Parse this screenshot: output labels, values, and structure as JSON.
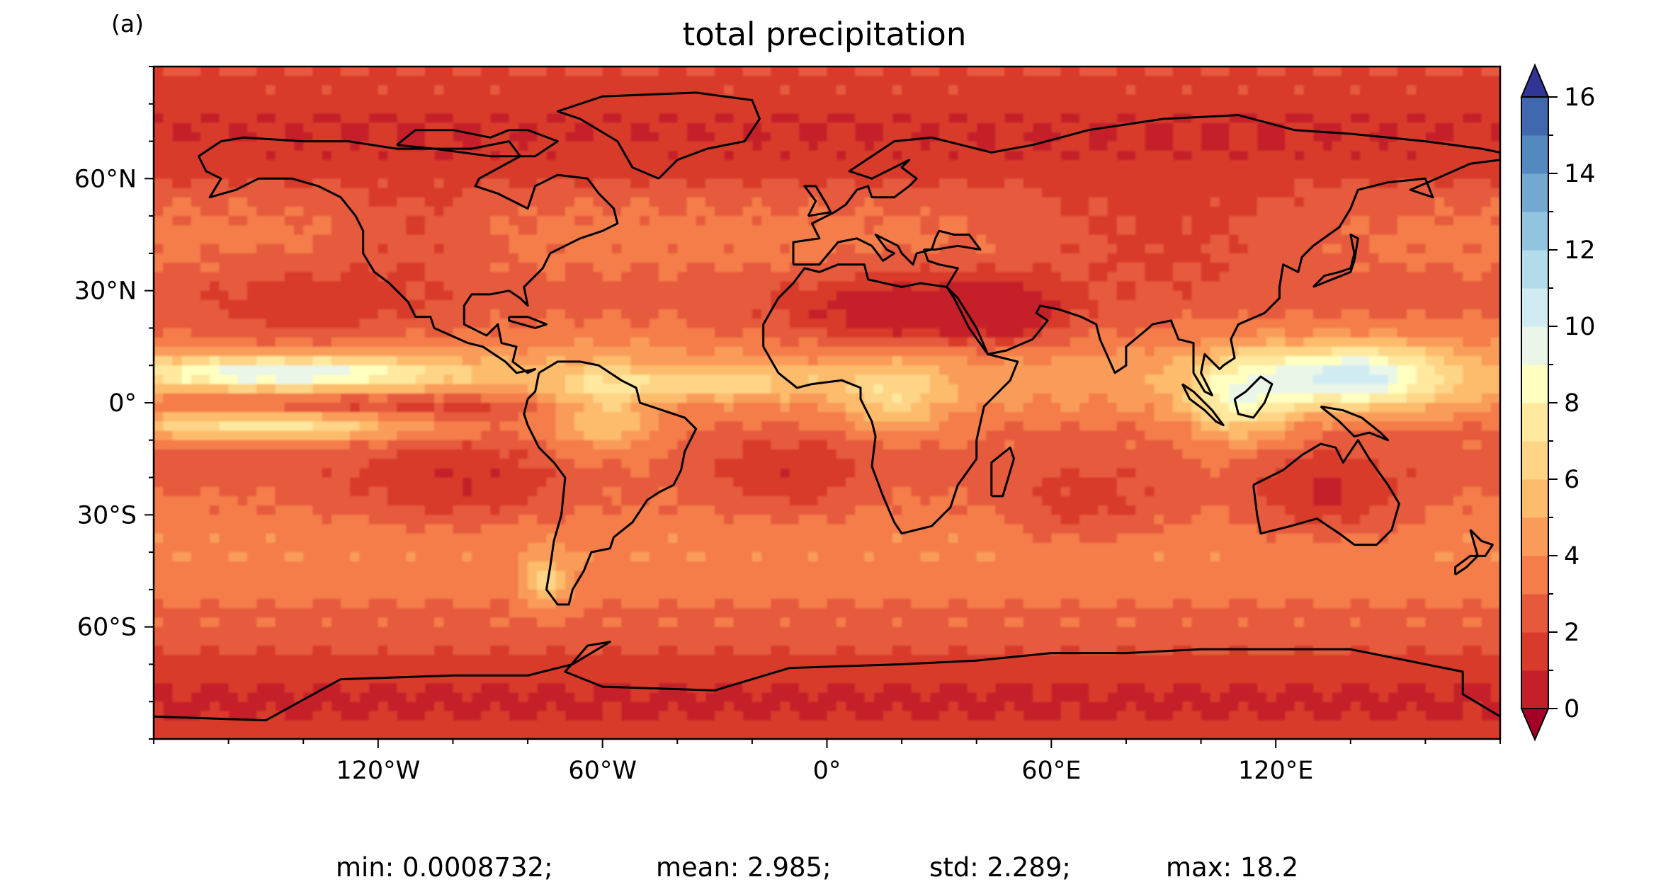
{
  "panel_label": "(a)",
  "chart_data": {
    "type": "heatmap",
    "title": "total precipitation",
    "projection": "PlateCarree",
    "xlim": [
      -180,
      180
    ],
    "ylim": [
      -90,
      90
    ],
    "x_ticks": [
      {
        "value": -120,
        "label": "120°W"
      },
      {
        "value": -60,
        "label": "60°W"
      },
      {
        "value": 0,
        "label": "0°"
      },
      {
        "value": 60,
        "label": "60°E"
      },
      {
        "value": 120,
        "label": "120°E"
      }
    ],
    "y_ticks": [
      {
        "value": 60,
        "label": "60°N"
      },
      {
        "value": 30,
        "label": "30°N"
      },
      {
        "value": 0,
        "label": "0°"
      },
      {
        "value": -30,
        "label": "30°S"
      },
      {
        "value": -60,
        "label": "60°S"
      }
    ],
    "colorbar": {
      "colormap": "RdYlBu",
      "extend": "both",
      "levels": [
        0,
        1,
        2,
        3,
        4,
        5,
        6,
        7,
        8,
        9,
        10,
        11,
        12,
        13,
        14,
        15,
        16
      ],
      "tick_values": [
        0,
        2,
        4,
        6,
        8,
        10,
        12,
        14,
        16
      ],
      "tick_labels": [
        "0",
        "2",
        "4",
        "6",
        "8",
        "10",
        "12",
        "14",
        "16"
      ],
      "under_color": "#a50026",
      "over_color": "#313695",
      "colors": [
        "#c5202a",
        "#d83a2c",
        "#e65a3c",
        "#f47d4a",
        "#f99c5a",
        "#fdbb6c",
        "#fed487",
        "#fee99f",
        "#ffffc0",
        "#e9f6e8",
        "#d0ebf2",
        "#b2dcea",
        "#92c4df",
        "#74a9cf",
        "#5489c0",
        "#3f68af"
      ]
    },
    "stats": {
      "min": "min: 0.0008732;",
      "mean": "mean: 2.985;",
      "std": "std: 2.289;",
      "max": "max: 18.2"
    }
  }
}
